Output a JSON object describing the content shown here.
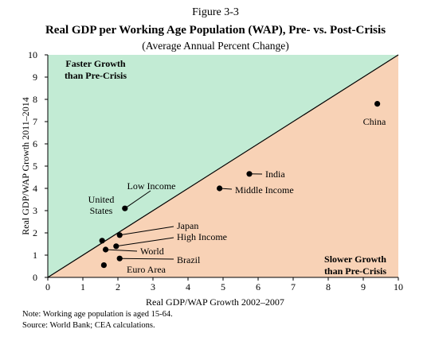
{
  "figure_label": "Figure 3-3",
  "chart_data": {
    "type": "scatter",
    "title": "Real GDP per Working Age Population (WAP), Pre- vs. Post-Crisis",
    "subtitle": "(Average Annual Percent Change)",
    "xlabel": "Real GDP/WAP Growth 2002–2007",
    "ylabel": "Real GDP/WAP Growth 2011–2014",
    "xlim": [
      0,
      10
    ],
    "ylim": [
      0,
      10
    ],
    "xticks": [
      "0",
      "1",
      "2",
      "3",
      "4",
      "5",
      "6",
      "7",
      "8",
      "9",
      "10"
    ],
    "yticks": [
      "0",
      "1",
      "2",
      "3",
      "4",
      "5",
      "6",
      "7",
      "8",
      "9",
      "10"
    ],
    "grid": false,
    "diagonal": "45-degree line y = x",
    "regions": [
      {
        "label": "Faster Growth than Pre-Crisis",
        "lines": [
          "Faster Growth",
          "than Pre-Crisis"
        ],
        "color": "#c2ebd4",
        "side": "above"
      },
      {
        "label": "Slower Growth than Pre-Crisis",
        "lines": [
          "Slower Growth",
          "than Pre-Crisis"
        ],
        "color": "#f8d2b6",
        "side": "below"
      }
    ],
    "points": [
      {
        "name": "China",
        "x": 9.4,
        "y": 7.8
      },
      {
        "name": "India",
        "x": 5.75,
        "y": 4.65
      },
      {
        "name": "Middle Income",
        "x": 4.9,
        "y": 4.0
      },
      {
        "name": "Low Income",
        "x": 2.2,
        "y": 3.1
      },
      {
        "name": "United States",
        "x": 1.55,
        "y": 1.65
      },
      {
        "name": "Japan",
        "x": 2.05,
        "y": 1.9
      },
      {
        "name": "High Income",
        "x": 1.95,
        "y": 1.4
      },
      {
        "name": "World",
        "x": 1.65,
        "y": 1.25
      },
      {
        "name": "Brazil",
        "x": 2.05,
        "y": 0.85
      },
      {
        "name": "Euro Area",
        "x": 1.6,
        "y": 0.55
      }
    ]
  },
  "notes": {
    "note": "Note: Working age population is aged 15-64.",
    "source": "Source: World Bank; CEA calculations."
  }
}
